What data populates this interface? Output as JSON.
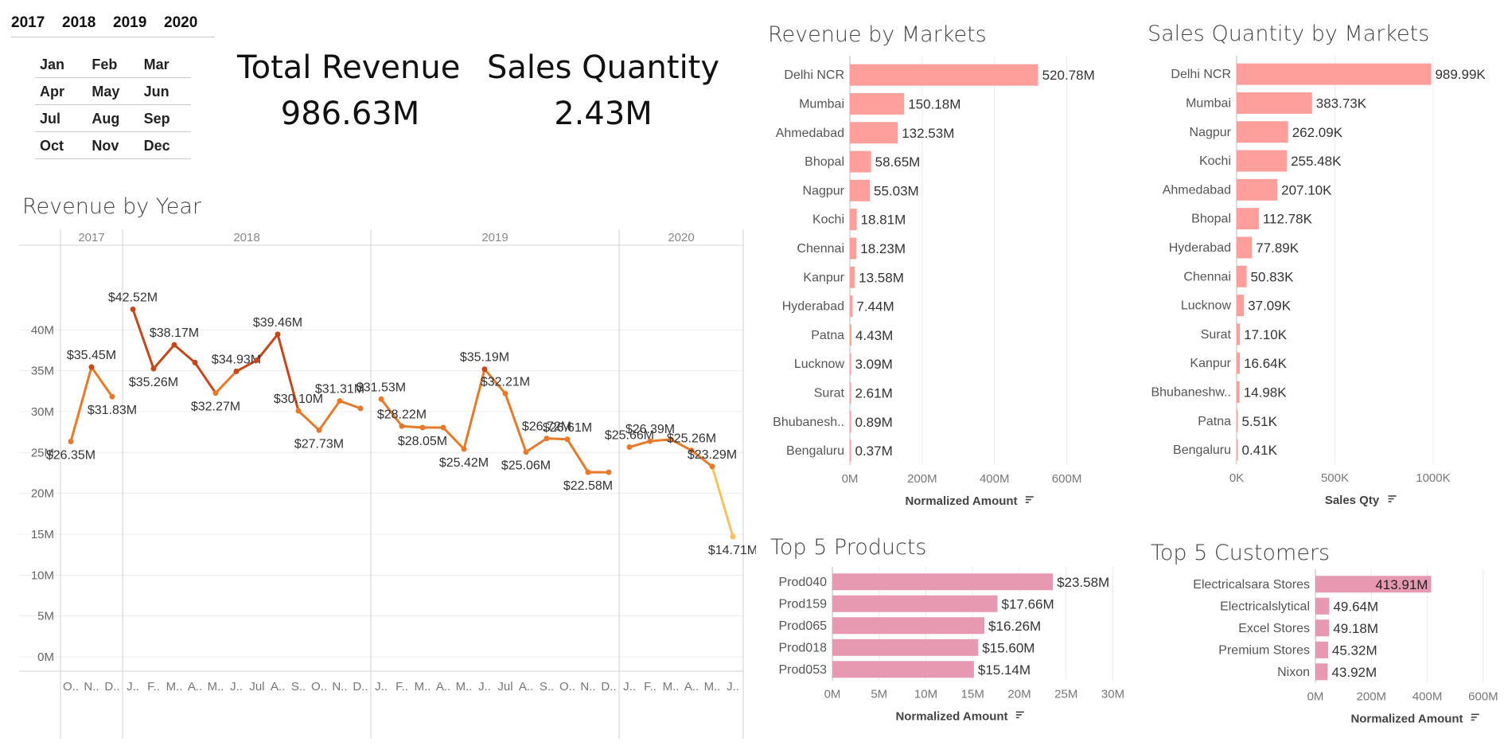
{
  "filters": {
    "years": [
      "2017",
      "2018",
      "2019",
      "2020"
    ],
    "months": [
      [
        "Jan",
        "Feb",
        "Mar"
      ],
      [
        "Apr",
        "May",
        "Jun"
      ],
      [
        "Jul",
        "Aug",
        "Sep"
      ],
      [
        "Oct",
        "Nov",
        "Dec"
      ]
    ]
  },
  "kpis": {
    "total_revenue_title": "Total Revenue",
    "total_revenue_value": "986.63M",
    "sales_quantity_title": "Sales Quantity",
    "sales_quantity_value": "2.43M"
  },
  "colors": {
    "market_bar": "#ff9f9b",
    "top5_bar": "#e899b2",
    "line_dark": "#c4481c",
    "line_mid": "#e67a2a",
    "line_light": "#f4c35e"
  },
  "chart_data": [
    {
      "id": "revenue-by-year",
      "type": "line",
      "title": "Revenue by Year",
      "ylim": [
        0,
        45000000
      ],
      "yticks": [
        0,
        5,
        10,
        15,
        20,
        25,
        30,
        35,
        40
      ],
      "ytick_labels": [
        "0M",
        "5M",
        "10M",
        "15M",
        "20M",
        "25M",
        "30M",
        "35M",
        "40M"
      ],
      "grid": true,
      "panels": [
        {
          "year": "2017",
          "months": [
            "O..",
            "N..",
            "D.."
          ],
          "values": [
            26.35,
            35.45,
            31.83
          ],
          "labels": [
            "$26.35M",
            "$35.45M",
            "$31.83M"
          ]
        },
        {
          "year": "2018",
          "months": [
            "J..",
            "F..",
            "M..",
            "A..",
            "M..",
            "J..",
            "Jul",
            "A..",
            "S..",
            "O..",
            "N..",
            "D.."
          ],
          "values": [
            42.52,
            35.26,
            38.17,
            36.0,
            32.27,
            34.93,
            36.3,
            39.46,
            30.1,
            27.73,
            31.31,
            30.4
          ],
          "labels": [
            "$42.52M",
            "$35.26M",
            "$38.17M",
            "",
            "$32.27M",
            "$34.93M",
            "",
            "$39.46M",
            "$30.10M",
            "$27.73M",
            "$31.31M",
            ""
          ]
        },
        {
          "year": "2019",
          "months": [
            "J..",
            "F..",
            "M..",
            "A..",
            "M..",
            "J..",
            "Jul",
            "A..",
            "S..",
            "O..",
            "N..",
            "D.."
          ],
          "values": [
            31.53,
            28.22,
            28.05,
            28.05,
            25.42,
            35.19,
            32.21,
            25.06,
            26.72,
            26.61,
            22.58,
            22.58
          ],
          "labels": [
            "$31.53M",
            "$28.22M",
            "$28.05M",
            "",
            "$25.42M",
            "$35.19M",
            "$32.21M",
            "$25.06M",
            "$26.72M",
            "$26.61M",
            "$22.58M",
            ""
          ]
        },
        {
          "year": "2020",
          "months": [
            "J..",
            "F..",
            "M..",
            "A..",
            "M..",
            "J.."
          ],
          "values": [
            25.66,
            26.39,
            26.6,
            25.26,
            23.29,
            14.71
          ],
          "labels": [
            "$25.66M",
            "$26.39M",
            "",
            "$25.26M",
            "$23.29M",
            "$14.71M"
          ]
        }
      ]
    },
    {
      "id": "revenue-by-markets",
      "type": "bar",
      "title": "Revenue by Markets",
      "categories": [
        "Delhi NCR",
        "Mumbai",
        "Ahmedabad",
        "Bhopal",
        "Nagpur",
        "Kochi",
        "Chennai",
        "Kanpur",
        "Hyderabad",
        "Patna",
        "Lucknow",
        "Surat",
        "Bhubanesh..",
        "Bengaluru"
      ],
      "values": [
        520.78,
        150.18,
        132.53,
        58.65,
        55.03,
        18.81,
        18.23,
        13.58,
        7.44,
        4.43,
        3.09,
        2.61,
        0.89,
        0.37
      ],
      "labels": [
        "520.78M",
        "150.18M",
        "132.53M",
        "58.65M",
        "55.03M",
        "18.81M",
        "18.23M",
        "13.58M",
        "7.44M",
        "4.43M",
        "3.09M",
        "2.61M",
        "0.89M",
        "0.37M"
      ],
      "xlim": [
        0,
        700
      ],
      "xticks": [
        0,
        200,
        400,
        600
      ],
      "xtick_labels": [
        "0M",
        "200M",
        "400M",
        "600M"
      ],
      "xlabel": "Normalized Amount"
    },
    {
      "id": "sales-qty-by-markets",
      "type": "bar",
      "title": "Sales Quantity by Markets",
      "categories": [
        "Delhi NCR",
        "Mumbai",
        "Nagpur",
        "Kochi",
        "Ahmedabad",
        "Bhopal",
        "Hyderabad",
        "Chennai",
        "Lucknow",
        "Surat",
        "Kanpur",
        "Bhubaneshw..",
        "Patna",
        "Bengaluru"
      ],
      "values": [
        989.99,
        383.73,
        262.09,
        255.48,
        207.1,
        112.78,
        77.89,
        50.83,
        37.09,
        17.1,
        16.64,
        14.98,
        5.51,
        0.41
      ],
      "labels": [
        "989.99K",
        "383.73K",
        "262.09K",
        "255.48K",
        "207.10K",
        "112.78K",
        "77.89K",
        "50.83K",
        "37.09K",
        "17.10K",
        "16.64K",
        "14.98K",
        "5.51K",
        "0.41K"
      ],
      "xlim": [
        0,
        1300
      ],
      "xticks": [
        0,
        500,
        1000
      ],
      "xtick_labels": [
        "0K",
        "500K",
        "1000K"
      ],
      "xlabel": "Sales Qty"
    },
    {
      "id": "top-5-products",
      "type": "bar",
      "title": "Top 5 Products",
      "categories": [
        "Prod040",
        "Prod159",
        "Prod065",
        "Prod018",
        "Prod053"
      ],
      "values": [
        23.58,
        17.66,
        16.26,
        15.6,
        15.14
      ],
      "labels": [
        "$23.58M",
        "$17.66M",
        "$16.26M",
        "$15.60M",
        "$15.14M"
      ],
      "xlim": [
        0,
        32
      ],
      "xticks": [
        0,
        5,
        10,
        15,
        20,
        25,
        30
      ],
      "xtick_labels": [
        "0M",
        "5M",
        "10M",
        "15M",
        "20M",
        "25M",
        "30M"
      ],
      "xlabel": "Normalized Amount"
    },
    {
      "id": "top-5-customers",
      "type": "bar",
      "title": "Top 5 Customers",
      "categories": [
        "Electricalsara Stores",
        "Electricalslytical",
        "Excel Stores",
        "Premium Stores",
        "Nixon"
      ],
      "values": [
        413.91,
        49.64,
        49.18,
        45.32,
        43.92
      ],
      "labels": [
        "413.91M",
        "49.64M",
        "49.18M",
        "45.32M",
        "43.92M"
      ],
      "xlim": [
        0,
        660
      ],
      "xticks": [
        0,
        200,
        400,
        600
      ],
      "xtick_labels": [
        "0M",
        "200M",
        "400M",
        "600M"
      ],
      "xlabel": "Normalized Amount"
    }
  ]
}
